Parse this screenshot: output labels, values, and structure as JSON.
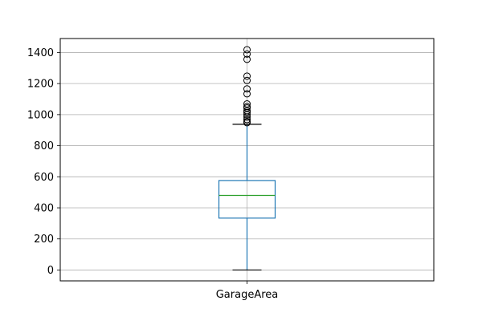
{
  "chart_data": {
    "type": "box",
    "title": "",
    "xlabel": "",
    "ylabel": "",
    "categories": [
      "GarageArea"
    ],
    "ylim": [
      -70,
      1490
    ],
    "yticks": [
      0,
      200,
      400,
      600,
      800,
      1000,
      1200,
      1400
    ],
    "grid": true,
    "box": {
      "whisker_low": 0,
      "q1": 334,
      "median": 480,
      "q3": 576,
      "whisker_high": 938
    },
    "outliers": [
      948,
      956,
      968,
      985,
      1000,
      1014,
      1025,
      1043,
      1052,
      1069,
      1134,
      1166,
      1220,
      1248,
      1356,
      1390,
      1418
    ],
    "colors": {
      "box": "#1f77b4",
      "median": "#2ca02c",
      "cap": "#000000",
      "outlier": "#000000",
      "grid": "#b0b0b0"
    }
  }
}
